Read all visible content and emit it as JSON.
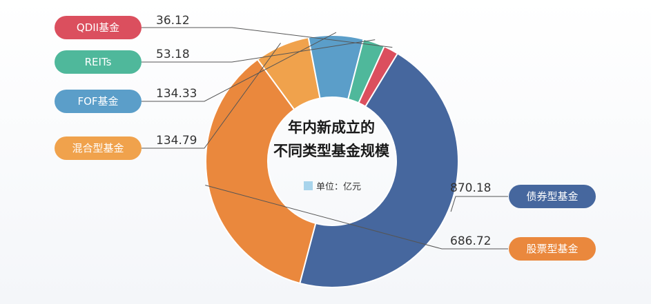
{
  "chart_data": {
    "type": "pie",
    "title": "年内新成立的不同类型基金规模",
    "title_lines": [
      "年内新成立的",
      "不同类型基金规模"
    ],
    "unit_label": "单位：亿元",
    "slices": [
      {
        "label": "债券型基金",
        "value_text": "870.18",
        "value": 870.18,
        "color": "#46679e"
      },
      {
        "label": "股票型基金",
        "value_text": "686.72",
        "value": 686.72,
        "color": "#ea883d"
      },
      {
        "label": "混合型基金",
        "value_text": "134.79",
        "value": 134.79,
        "color": "#f0a24c"
      },
      {
        "label": "FOF基金",
        "value_text": "134.33",
        "value": 134.33,
        "color": "#5b9ec9"
      },
      {
        "label": "REITs",
        "value_text": "53.18",
        "value": 53.18,
        "color": "#4fb89b"
      },
      {
        "label": "QDII基金",
        "value_text": "36.12",
        "value": 36.12,
        "color": "#db4f5e"
      }
    ],
    "legend_swatch_color": "#a8d4ec"
  }
}
